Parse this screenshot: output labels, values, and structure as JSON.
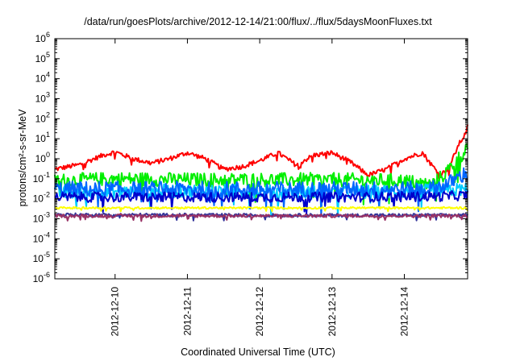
{
  "chart_data": {
    "type": "line",
    "title": "/data/run/goesPlots/archive/2012-12-14/21:00/flux/../flux/5daysMoonFluxes.txt",
    "xlabel": "Coordinated Universal Time (UTC)",
    "ylabel": "protons/cm²-s-sr-MeV",
    "y_scale": "log",
    "ylim": [
      1e-06,
      1000000.0
    ],
    "xlim": [
      "2012-12-09 04:00",
      "2012-12-14 21:00"
    ],
    "x_ticks": [
      "2012-12-10",
      "2012-12-11",
      "2012-12-12",
      "2012-12-13",
      "2012-12-14"
    ],
    "y_ticks": [
      {
        "base": "10",
        "exp": "-6"
      },
      {
        "base": "10",
        "exp": "-5"
      },
      {
        "base": "10",
        "exp": "-4"
      },
      {
        "base": "10",
        "exp": "-3"
      },
      {
        "base": "10",
        "exp": "-2"
      },
      {
        "base": "10",
        "exp": "-1"
      },
      {
        "base": "10",
        "exp": "0"
      },
      {
        "base": "10",
        "exp": "1"
      },
      {
        "base": "10",
        "exp": "2"
      },
      {
        "base": "10",
        "exp": "3"
      },
      {
        "base": "10",
        "exp": "4"
      },
      {
        "base": "10",
        "exp": "5"
      },
      {
        "base": "10",
        "exp": "6"
      }
    ],
    "grid": false,
    "legend": "none",
    "series": [
      {
        "color": "#ff0000",
        "noise": 0.12,
        "points": [
          [
            "2012-12-09 04:00",
            0.3
          ],
          [
            "2012-12-09 12:00",
            0.5
          ],
          [
            "2012-12-09 20:00",
            1.5
          ],
          [
            "2012-12-10 00:00",
            2.2
          ],
          [
            "2012-12-10 06:00",
            1.0
          ],
          [
            "2012-12-10 12:00",
            0.6
          ],
          [
            "2012-12-10 18:00",
            1.0
          ],
          [
            "2012-12-11 00:00",
            2.0
          ],
          [
            "2012-12-11 06:00",
            1.0
          ],
          [
            "2012-12-11 12:00",
            0.3
          ],
          [
            "2012-12-11 18:00",
            0.4
          ],
          [
            "2012-12-12 00:00",
            0.8
          ],
          [
            "2012-12-12 06:00",
            2.0
          ],
          [
            "2012-12-12 12:00",
            0.5
          ],
          [
            "2012-12-12 18:00",
            1.5
          ],
          [
            "2012-12-13 00:00",
            2.0
          ],
          [
            "2012-12-13 06:00",
            0.7
          ],
          [
            "2012-12-13 12:00",
            0.15
          ],
          [
            "2012-12-13 18:00",
            0.3
          ],
          [
            "2012-12-14 00:00",
            1.0
          ],
          [
            "2012-12-14 06:00",
            2.0
          ],
          [
            "2012-12-14 09:00",
            0.5
          ],
          [
            "2012-12-14 12:00",
            0.15
          ],
          [
            "2012-12-14 15:00",
            0.4
          ],
          [
            "2012-12-14 18:00",
            5
          ],
          [
            "2012-12-14 20:00",
            15
          ],
          [
            "2012-12-14 21:00",
            40
          ]
        ]
      },
      {
        "color": "#00ee00",
        "noise": 0.35,
        "points": [
          [
            "2012-12-09 04:00",
            0.08
          ],
          [
            "2012-12-10 00:00",
            0.1
          ],
          [
            "2012-12-11 00:00",
            0.09
          ],
          [
            "2012-12-12 00:00",
            0.09
          ],
          [
            "2012-12-13 00:00",
            0.09
          ],
          [
            "2012-12-14 00:00",
            0.08
          ],
          [
            "2012-12-14 09:00",
            0.05
          ],
          [
            "2012-12-14 13:00",
            0.15
          ],
          [
            "2012-12-14 16:00",
            0.5
          ],
          [
            "2012-12-14 19:00",
            1.5
          ],
          [
            "2012-12-14 21:00",
            5
          ]
        ]
      },
      {
        "color": "#00ccff",
        "noise": 0.35,
        "points": [
          [
            "2012-12-09 04:00",
            0.02
          ],
          [
            "2012-12-11 00:00",
            0.025
          ],
          [
            "2012-12-13 00:00",
            0.02
          ],
          [
            "2012-12-14 12:00",
            0.025
          ],
          [
            "2012-12-14 21:00",
            0.03
          ]
        ]
      },
      {
        "color": "#0066ff",
        "noise": 0.4,
        "points": [
          [
            "2012-12-09 04:00",
            0.03
          ],
          [
            "2012-12-11 00:00",
            0.03
          ],
          [
            "2012-12-13 00:00",
            0.03
          ],
          [
            "2012-12-14 08:00",
            0.03
          ],
          [
            "2012-12-14 14:00",
            0.05
          ],
          [
            "2012-12-14 18:00",
            0.12
          ],
          [
            "2012-12-14 21:00",
            0.2
          ]
        ]
      },
      {
        "color": "#0000cc",
        "noise": 0.25,
        "points": [
          [
            "2012-12-09 04:00",
            0.012
          ],
          [
            "2012-12-11 00:00",
            0.012
          ],
          [
            "2012-12-13 00:00",
            0.012
          ],
          [
            "2012-12-14 12:00",
            0.013
          ],
          [
            "2012-12-14 21:00",
            0.015
          ]
        ]
      },
      {
        "color": "#ffff00",
        "noise": 0.05,
        "points": [
          [
            "2012-12-09 04:00",
            0.0035
          ],
          [
            "2012-12-12 00:00",
            0.0035
          ],
          [
            "2012-12-14 21:00",
            0.0035
          ]
        ]
      },
      {
        "color": "#333399",
        "noise": 0.08,
        "points": [
          [
            "2012-12-09 04:00",
            0.0016
          ],
          [
            "2012-12-12 00:00",
            0.0015
          ],
          [
            "2012-12-14 21:00",
            0.0015
          ]
        ]
      },
      {
        "color": "#993366",
        "noise": 0.08,
        "points": [
          [
            "2012-12-09 04:00",
            0.0014
          ],
          [
            "2012-12-12 00:00",
            0.0014
          ],
          [
            "2012-12-14 21:00",
            0.0014
          ]
        ]
      }
    ]
  }
}
